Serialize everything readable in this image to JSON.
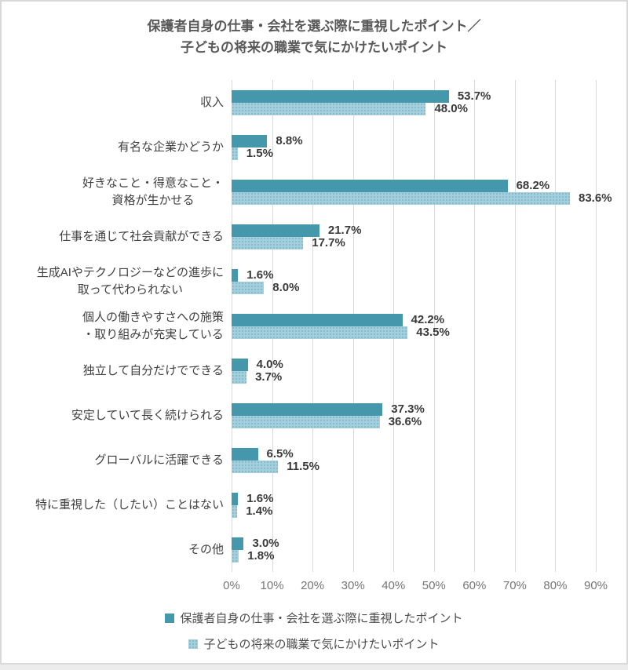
{
  "title": {
    "lines": [
      "保護者自身の仕事・会社を選ぶ際に重視したポイント／",
      "子どもの将来の職業で気にかけたいポイント"
    ]
  },
  "chart_data": {
    "type": "bar",
    "orientation": "horizontal",
    "title": "保護者自身の仕事・会社を選ぶ際に重視したポイント／子どもの将来の職業で気にかけたいポイント",
    "categories": [
      "収入",
      "有名な企業かどうか",
      "好きなこと・得意なこと・\n資格が生かせる",
      "仕事を通じて社会貢献ができる",
      "生成AIやテクノロジーなどの進歩に\n取って代わられない",
      "個人の働きやすさへの施策\n・取り組みが充実している",
      "独立して自分だけでできる",
      "安定していて長く続けられる",
      "グローバルに活躍できる",
      "特に重視した（したい）ことはない",
      "その他"
    ],
    "series": [
      {
        "name": "保護者自身の仕事・会社を選ぶ際に重視したポイント",
        "color": "#4597ac",
        "values": [
          53.7,
          8.8,
          68.2,
          21.7,
          1.6,
          42.2,
          4.0,
          37.3,
          6.5,
          1.6,
          3.0
        ]
      },
      {
        "name": "子どもの将来の職業で気にかけたいポイント",
        "color": "#a5cfdc",
        "values": [
          48.0,
          1.5,
          83.6,
          17.7,
          8.0,
          43.5,
          3.7,
          36.6,
          11.5,
          1.4,
          1.8
        ]
      }
    ],
    "x_ticks": [
      "0%",
      "10%",
      "20%",
      "30%",
      "40%",
      "50%",
      "60%",
      "70%",
      "80%",
      "90%"
    ],
    "xlim": [
      0,
      90
    ],
    "grid": true,
    "legend_position": "bottom",
    "value_label_format": "one-decimal-percent"
  },
  "colors": {
    "series1": "#4597ac",
    "series2": "#a5cfdc",
    "grid": "#d9d9d9",
    "border": "#d9d9d9",
    "title_text": "#595959",
    "category_text": "#404040",
    "value_text": "#3a3a3a",
    "tick_text": "#757575"
  }
}
